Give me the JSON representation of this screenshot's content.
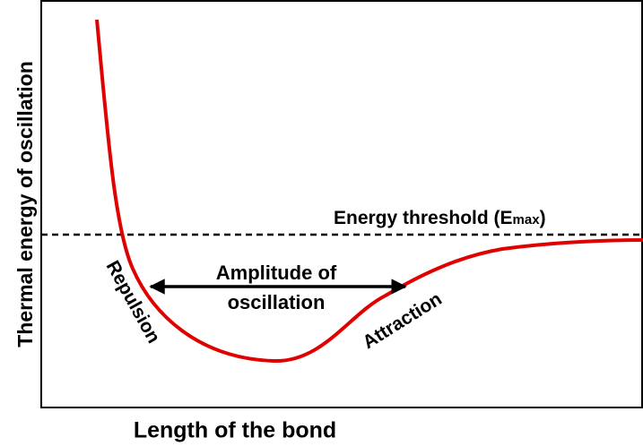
{
  "y_axis_label": "Thermal energy of oscillation",
  "x_axis_label": "Length of the bond",
  "threshold": {
    "text": "Energy threshold (E",
    "subscript": "max",
    "close": ")"
  },
  "amplitude": {
    "lines": [
      "Amplitude of",
      "oscillation"
    ]
  },
  "repulsion": "Repulsion",
  "attraction": "Attraction"
}
